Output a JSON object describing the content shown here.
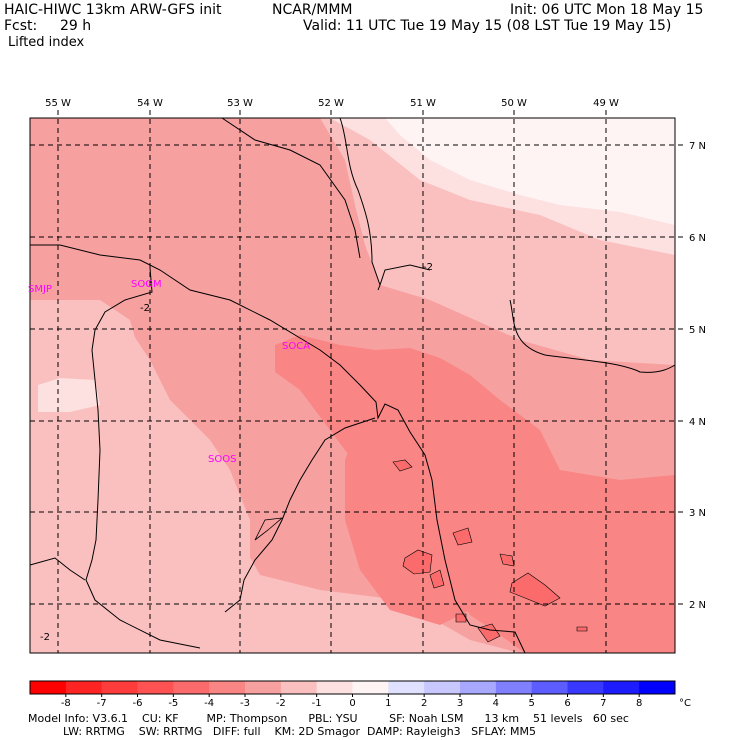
{
  "header": {
    "model": "HAIC-HIWC 13km ARW-GFS init",
    "org": "NCAR/MMM",
    "init": "Init: 06 UTC Mon 18 May 15",
    "fcst_label": "Fcst:",
    "fcst_value": "29 h",
    "valid": "Valid: 11 UTC Tue 19 May 15 (08 LST Tue 19 May 15)",
    "field": "Lifted index"
  },
  "map": {
    "lon_labels": [
      "55 W",
      "54 W",
      "53 W",
      "52 W",
      "51 W",
      "50 W",
      "49 W"
    ],
    "lat_labels": [
      "7 N",
      "6 N",
      "5 N",
      "4 N",
      "3 N",
      "2 N"
    ],
    "stations": [
      "SMJP",
      "SOGM",
      "SOCA",
      "SOOS"
    ],
    "contour_labels": [
      "-2",
      "-2",
      "-2"
    ]
  },
  "colorbar": {
    "ticks": [
      "-8",
      "-7",
      "-6",
      "-5",
      "-4",
      "-3",
      "-2",
      "-1",
      "0",
      "1",
      "2",
      "3",
      "4",
      "5",
      "6",
      "7",
      "8"
    ],
    "unit": "°C",
    "colors": [
      "#ff0000",
      "#ff2424",
      "#ff3c3c",
      "#ff5252",
      "#fb6b6b",
      "#f98585",
      "#f7a0a0",
      "#fac0c0",
      "#fde0e0",
      "#fff4f4",
      "#e0e0ff",
      "#c8c8ff",
      "#a8a8ff",
      "#8080ff",
      "#5c5cff",
      "#3838ff",
      "#1c1cff",
      "#0000ff"
    ]
  },
  "footer": {
    "line1": "Model Info: V3.6.1    CU: KF        MP: Thompson      PBL: YSU         SF: Noah LSM      13 km    51 levels   60 sec",
    "line2": "          LW: RRTMG    SW: RRTMG   DIFF: full    KM: 2D Smagor  DAMP: Rayleigh3   SFLAY: MM5"
  }
}
